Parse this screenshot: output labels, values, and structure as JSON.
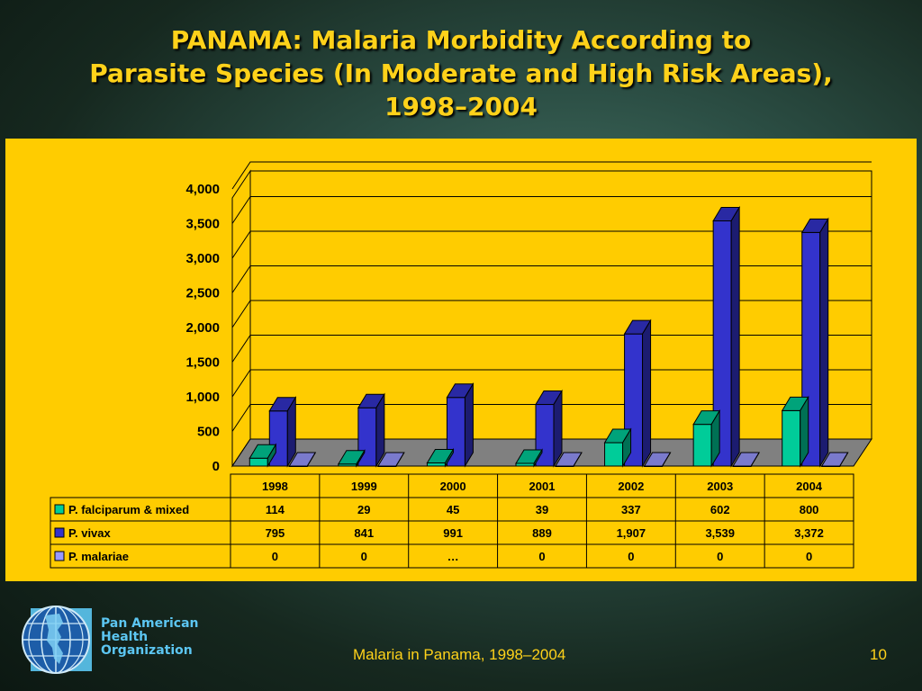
{
  "title": {
    "line1": "PANAMA: Malaria Morbidity According to",
    "line2": "Parasite Species (In Moderate and High Risk Areas),",
    "line3": "1998–2004"
  },
  "footer": {
    "caption": "Malaria in Panama, 1998–2004",
    "page": "10"
  },
  "organization": {
    "line1": "Pan American",
    "line2": "Health",
    "line3": "Organization"
  },
  "colors": {
    "panel": "#ffcc00",
    "floor": "#808080",
    "falciparum": "#00cc99",
    "vivax": "#3333cc",
    "malariae": "#9999ff",
    "text_title": "#ffd21a",
    "org_text": "#5cc6f2"
  },
  "chart_data": {
    "type": "bar",
    "title": "",
    "xlabel": "",
    "ylabel": "",
    "ylim": [
      0,
      4000
    ],
    "yticks": [
      0,
      500,
      1000,
      1500,
      2000,
      2500,
      3000,
      3500,
      4000
    ],
    "ytick_labels": [
      "0",
      "500",
      "1,000",
      "1,500",
      "2,000",
      "2,500",
      "3,000",
      "3,500",
      "4,000"
    ],
    "categories": [
      "1998",
      "1999",
      "2000",
      "2001",
      "2002",
      "2003",
      "2004"
    ],
    "series": [
      {
        "name": "P. falciparum & mixed",
        "color": "#00cc99",
        "values": [
          114,
          29,
          45,
          39,
          337,
          602,
          800
        ],
        "labels": [
          "114",
          "29",
          "45",
          "39",
          "337",
          "602",
          "800"
        ]
      },
      {
        "name": "P. vivax",
        "color": "#3333cc",
        "values": [
          795,
          841,
          991,
          889,
          1907,
          3539,
          3372
        ],
        "labels": [
          "795",
          "841",
          "991",
          "889",
          "1,907",
          "3,539",
          "3,372"
        ]
      },
      {
        "name": "P. malariae",
        "color": "#9999ff",
        "values": [
          0,
          0,
          null,
          0,
          0,
          0,
          0
        ],
        "labels": [
          "0",
          "0",
          "…",
          "0",
          "0",
          "0",
          "0"
        ]
      }
    ],
    "grid": true,
    "legend": "data table below chart",
    "three_d": true
  }
}
